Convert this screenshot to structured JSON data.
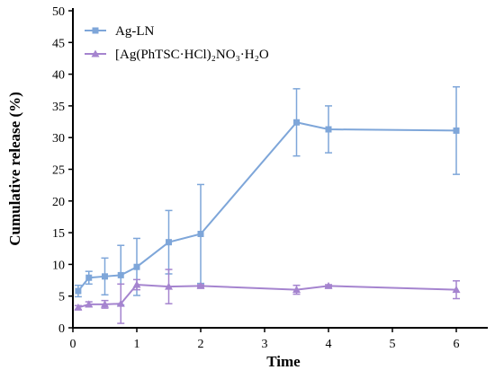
{
  "chart_data": {
    "type": "line",
    "title": "",
    "xlabel": "Time",
    "ylabel": "Cumulative release (%)",
    "xlim": [
      0,
      7
    ],
    "ylim": [
      0,
      50
    ],
    "xticks": [
      0,
      1,
      2,
      3,
      4,
      5,
      6
    ],
    "yticks": [
      0,
      5,
      10,
      15,
      20,
      25,
      30,
      35,
      40,
      45,
      50
    ],
    "grid": false,
    "legend_position": "top-left",
    "series": [
      {
        "name": "Ag-LN",
        "color": "#7ea6d9",
        "marker": "square",
        "x": [
          0.083,
          0.25,
          0.5,
          0.75,
          1,
          1.5,
          2,
          3.5,
          4,
          6
        ],
        "y": [
          5.8,
          7.9,
          8.1,
          8.3,
          9.6,
          13.5,
          14.8,
          32.4,
          31.3,
          31.1
        ],
        "error": [
          0.9,
          1.0,
          2.9,
          4.7,
          4.5,
          5.0,
          7.8,
          5.3,
          3.7,
          6.9
        ]
      },
      {
        "name": "[Ag(PhTSC·HCl)₂NO₃·H₂O",
        "color": "#a584cf",
        "marker": "triangle",
        "x": [
          0.083,
          0.25,
          0.5,
          0.75,
          1,
          1.5,
          2,
          3.5,
          4,
          6
        ],
        "y": [
          3.2,
          3.7,
          3.7,
          3.8,
          6.8,
          6.5,
          6.6,
          6.0,
          6.6,
          6.0
        ],
        "error": [
          0.3,
          0.4,
          0.6,
          3.1,
          0.8,
          2.7,
          0.2,
          0.7,
          0.2,
          1.4
        ]
      }
    ]
  }
}
